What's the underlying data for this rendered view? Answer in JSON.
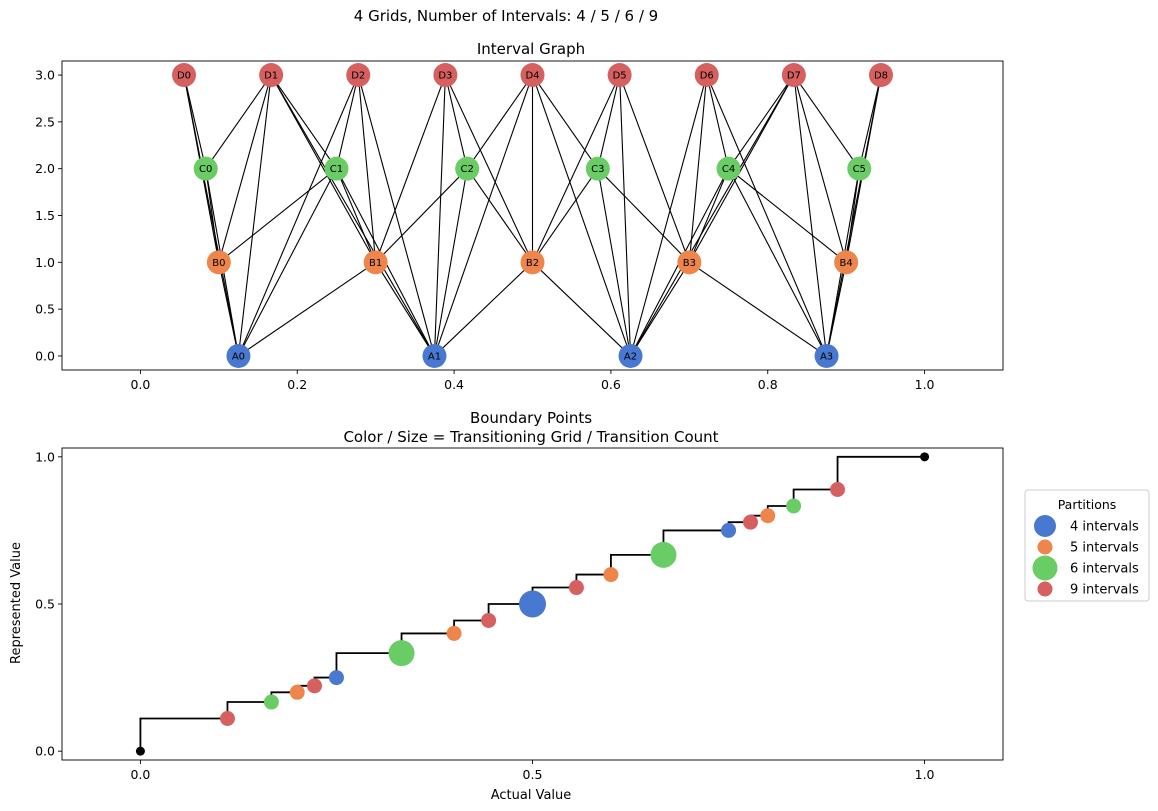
{
  "figure": {
    "suptitle": "4 Grids, Number of Intervals: 4 / 5 / 6 / 9"
  },
  "colors": {
    "A": "#4878d0",
    "B": "#ee854a",
    "C": "#6acc64",
    "D": "#d65f5f",
    "edge": "#000000",
    "step": "#000000"
  },
  "chart_data": [
    {
      "type": "scatter",
      "title": "Interval Graph",
      "xlabel": "",
      "ylabel": "",
      "xlim": [
        -0.1,
        1.1
      ],
      "ylim": [
        -0.15,
        3.15
      ],
      "xticks": [
        "0.0",
        "0.2",
        "0.4",
        "0.6",
        "0.8",
        "1.0"
      ],
      "yticks": [
        "0.0",
        "0.5",
        "1.0",
        "1.5",
        "2.0",
        "2.5",
        "3.0"
      ],
      "nodes": [
        {
          "id": "A0",
          "group": "A",
          "x": 0.125,
          "y": 0
        },
        {
          "id": "A1",
          "group": "A",
          "x": 0.375,
          "y": 0
        },
        {
          "id": "A2",
          "group": "A",
          "x": 0.625,
          "y": 0
        },
        {
          "id": "A3",
          "group": "A",
          "x": 0.875,
          "y": 0
        },
        {
          "id": "B0",
          "group": "B",
          "x": 0.1,
          "y": 1
        },
        {
          "id": "B1",
          "group": "B",
          "x": 0.3,
          "y": 1
        },
        {
          "id": "B2",
          "group": "B",
          "x": 0.5,
          "y": 1
        },
        {
          "id": "B3",
          "group": "B",
          "x": 0.7,
          "y": 1
        },
        {
          "id": "B4",
          "group": "B",
          "x": 0.9,
          "y": 1
        },
        {
          "id": "C0",
          "group": "C",
          "x": 0.0833,
          "y": 2
        },
        {
          "id": "C1",
          "group": "C",
          "x": 0.25,
          "y": 2
        },
        {
          "id": "C2",
          "group": "C",
          "x": 0.4167,
          "y": 2
        },
        {
          "id": "C3",
          "group": "C",
          "x": 0.5833,
          "y": 2
        },
        {
          "id": "C4",
          "group": "C",
          "x": 0.75,
          "y": 2
        },
        {
          "id": "C5",
          "group": "C",
          "x": 0.9167,
          "y": 2
        },
        {
          "id": "D0",
          "group": "D",
          "x": 0.0556,
          "y": 3
        },
        {
          "id": "D1",
          "group": "D",
          "x": 0.1667,
          "y": 3
        },
        {
          "id": "D2",
          "group": "D",
          "x": 0.2778,
          "y": 3
        },
        {
          "id": "D3",
          "group": "D",
          "x": 0.3889,
          "y": 3
        },
        {
          "id": "D4",
          "group": "D",
          "x": 0.5,
          "y": 3
        },
        {
          "id": "D5",
          "group": "D",
          "x": 0.6111,
          "y": 3
        },
        {
          "id": "D6",
          "group": "D",
          "x": 0.7222,
          "y": 3
        },
        {
          "id": "D7",
          "group": "D",
          "x": 0.8333,
          "y": 3
        },
        {
          "id": "D8",
          "group": "D",
          "x": 0.9444,
          "y": 3
        }
      ],
      "edges": [
        [
          "A0",
          "B0"
        ],
        [
          "A0",
          "B1"
        ],
        [
          "A0",
          "C0"
        ],
        [
          "A0",
          "C1"
        ],
        [
          "A0",
          "D0"
        ],
        [
          "A0",
          "D1"
        ],
        [
          "A0",
          "D2"
        ],
        [
          "A1",
          "B1"
        ],
        [
          "A1",
          "B2"
        ],
        [
          "A1",
          "C1"
        ],
        [
          "A1",
          "C2"
        ],
        [
          "A1",
          "D1"
        ],
        [
          "A1",
          "D2"
        ],
        [
          "A1",
          "D3"
        ],
        [
          "A1",
          "D4"
        ],
        [
          "A2",
          "B2"
        ],
        [
          "A2",
          "B3"
        ],
        [
          "A2",
          "C3"
        ],
        [
          "A2",
          "C4"
        ],
        [
          "A2",
          "D4"
        ],
        [
          "A2",
          "D5"
        ],
        [
          "A2",
          "D6"
        ],
        [
          "A2",
          "D7"
        ],
        [
          "A3",
          "B3"
        ],
        [
          "A3",
          "B4"
        ],
        [
          "A3",
          "C4"
        ],
        [
          "A3",
          "C5"
        ],
        [
          "A3",
          "D6"
        ],
        [
          "A3",
          "D7"
        ],
        [
          "A3",
          "D8"
        ],
        [
          "B0",
          "C0"
        ],
        [
          "B0",
          "C1"
        ],
        [
          "B0",
          "D0"
        ],
        [
          "B0",
          "D1"
        ],
        [
          "B1",
          "C1"
        ],
        [
          "B1",
          "C2"
        ],
        [
          "B1",
          "D1"
        ],
        [
          "B1",
          "D2"
        ],
        [
          "B1",
          "D3"
        ],
        [
          "B2",
          "C2"
        ],
        [
          "B2",
          "C3"
        ],
        [
          "B2",
          "D3"
        ],
        [
          "B2",
          "D4"
        ],
        [
          "B2",
          "D5"
        ],
        [
          "B3",
          "C3"
        ],
        [
          "B3",
          "C4"
        ],
        [
          "B3",
          "D5"
        ],
        [
          "B3",
          "D6"
        ],
        [
          "B3",
          "D7"
        ],
        [
          "B4",
          "C4"
        ],
        [
          "B4",
          "C5"
        ],
        [
          "B4",
          "D7"
        ],
        [
          "B4",
          "D8"
        ],
        [
          "C0",
          "D0"
        ],
        [
          "C0",
          "D1"
        ],
        [
          "C1",
          "D1"
        ],
        [
          "C1",
          "D2"
        ],
        [
          "C2",
          "D3"
        ],
        [
          "C2",
          "D4"
        ],
        [
          "C3",
          "D4"
        ],
        [
          "C3",
          "D5"
        ],
        [
          "C4",
          "D6"
        ],
        [
          "C4",
          "D7"
        ],
        [
          "C5",
          "D7"
        ],
        [
          "C5",
          "D8"
        ]
      ]
    },
    {
      "type": "scatter",
      "title": "Boundary Points",
      "subtitle": "Color / Size = Transitioning Grid / Transition Count",
      "xlabel": "Actual Value",
      "ylabel": "Represented Value",
      "xlim": [
        -0.1,
        1.1
      ],
      "ylim": [
        -0.03,
        1.03
      ],
      "xticks": [
        "0.0",
        "0.5",
        "1.0"
      ],
      "yticks": [
        "0.0",
        "0.5",
        "1.0"
      ],
      "legend": {
        "title": "Partitions",
        "placement": "right",
        "entries": [
          {
            "label": "4 intervals",
            "group": "A"
          },
          {
            "label": "5 intervals",
            "group": "B"
          },
          {
            "label": "6 intervals",
            "group": "C"
          },
          {
            "label": "9 intervals",
            "group": "D"
          }
        ]
      },
      "step_points": [
        [
          0,
          0
        ],
        [
          0,
          0.111
        ],
        [
          0.111,
          0.111
        ],
        [
          0.111,
          0.167
        ],
        [
          0.167,
          0.167
        ],
        [
          0.167,
          0.2
        ],
        [
          0.2,
          0.2
        ],
        [
          0.2,
          0.222
        ],
        [
          0.222,
          0.222
        ],
        [
          0.222,
          0.25
        ],
        [
          0.25,
          0.25
        ],
        [
          0.25,
          0.333
        ],
        [
          0.333,
          0.333
        ],
        [
          0.333,
          0.4
        ],
        [
          0.4,
          0.4
        ],
        [
          0.4,
          0.444
        ],
        [
          0.444,
          0.444
        ],
        [
          0.444,
          0.5
        ],
        [
          0.5,
          0.5
        ],
        [
          0.5,
          0.556
        ],
        [
          0.556,
          0.556
        ],
        [
          0.556,
          0.6
        ],
        [
          0.6,
          0.6
        ],
        [
          0.6,
          0.667
        ],
        [
          0.667,
          0.667
        ],
        [
          0.667,
          0.75
        ],
        [
          0.75,
          0.75
        ],
        [
          0.75,
          0.778
        ],
        [
          0.778,
          0.778
        ],
        [
          0.778,
          0.8
        ],
        [
          0.8,
          0.8
        ],
        [
          0.8,
          0.833
        ],
        [
          0.833,
          0.833
        ],
        [
          0.833,
          0.889
        ],
        [
          0.889,
          0.889
        ],
        [
          0.889,
          1.0
        ],
        [
          1.0,
          1.0
        ]
      ],
      "endpoints": [
        [
          0,
          0
        ],
        [
          1,
          1
        ]
      ],
      "points": [
        {
          "x": 0.111,
          "y": 0.111,
          "group": "D",
          "count": 1
        },
        {
          "x": 0.167,
          "y": 0.167,
          "group": "C",
          "count": 1
        },
        {
          "x": 0.2,
          "y": 0.2,
          "group": "B",
          "count": 1
        },
        {
          "x": 0.222,
          "y": 0.222,
          "group": "D",
          "count": 1
        },
        {
          "x": 0.25,
          "y": 0.25,
          "group": "A",
          "count": 1
        },
        {
          "x": 0.333,
          "y": 0.333,
          "group": "C",
          "count": 2
        },
        {
          "x": 0.4,
          "y": 0.4,
          "group": "B",
          "count": 1
        },
        {
          "x": 0.444,
          "y": 0.444,
          "group": "D",
          "count": 1
        },
        {
          "x": 0.5,
          "y": 0.5,
          "group": "A",
          "count": 3
        },
        {
          "x": 0.556,
          "y": 0.556,
          "group": "D",
          "count": 1
        },
        {
          "x": 0.6,
          "y": 0.6,
          "group": "B",
          "count": 1
        },
        {
          "x": 0.667,
          "y": 0.667,
          "group": "C",
          "count": 2
        },
        {
          "x": 0.75,
          "y": 0.75,
          "group": "A",
          "count": 1
        },
        {
          "x": 0.778,
          "y": 0.778,
          "group": "D",
          "count": 1
        },
        {
          "x": 0.8,
          "y": 0.8,
          "group": "B",
          "count": 1
        },
        {
          "x": 0.833,
          "y": 0.833,
          "group": "C",
          "count": 1
        },
        {
          "x": 0.889,
          "y": 0.889,
          "group": "D",
          "count": 1
        }
      ]
    }
  ]
}
